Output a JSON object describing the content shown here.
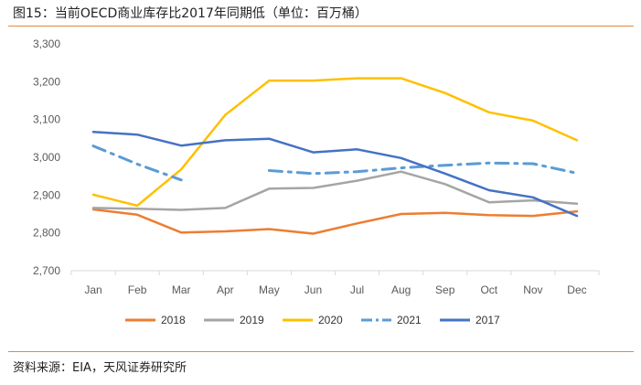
{
  "figure": {
    "title": "图15：当前OECD商业库存比2017年同期低（单位：百万桶）",
    "source": "资料来源：EIA，天风证券研究所"
  },
  "chart_data": {
    "type": "line",
    "title": "",
    "xlabel": "",
    "ylabel": "",
    "categories": [
      "Jan",
      "Feb",
      "Mar",
      "Apr",
      "May",
      "Jun",
      "Jul",
      "Aug",
      "Sep",
      "Oct",
      "Nov",
      "Dec"
    ],
    "ylim": [
      2700,
      3300
    ],
    "yticks": [
      2700,
      2800,
      2900,
      3000,
      3100,
      3200,
      3300
    ],
    "ytick_labels": [
      "2,700",
      "2,800",
      "2,900",
      "3,000",
      "3,100",
      "3,200",
      "3,300"
    ],
    "grid": false,
    "legend_position": "bottom",
    "series": [
      {
        "name": "2018",
        "color": "#ed7d31",
        "style": "solid",
        "values": [
          2862,
          2848,
          2801,
          2804,
          2810,
          2798,
          2825,
          2850,
          2853,
          2847,
          2845,
          2857
        ]
      },
      {
        "name": "2019",
        "color": "#a5a5a5",
        "style": "solid",
        "values": [
          2866,
          2864,
          2861,
          2866,
          2917,
          2919,
          2938,
          2962,
          2929,
          2881,
          2886,
          2877
        ]
      },
      {
        "name": "2020",
        "color": "#ffc000",
        "style": "solid",
        "values": [
          2901,
          2872,
          2968,
          3112,
          3203,
          3203,
          3209,
          3209,
          3170,
          3119,
          3097,
          3045
        ]
      },
      {
        "name": "2021",
        "color": "#5b9bd5",
        "style": "dashdot",
        "values": [
          3030,
          2982,
          2940,
          null,
          2965,
          2957,
          2962,
          2972,
          2979,
          2985,
          2983,
          2958
        ]
      },
      {
        "name": "2017",
        "color": "#4472c4",
        "style": "solid",
        "values": [
          3067,
          3060,
          3031,
          3045,
          3049,
          3013,
          3021,
          2998,
          2957,
          2913,
          2894,
          2845
        ]
      }
    ]
  }
}
